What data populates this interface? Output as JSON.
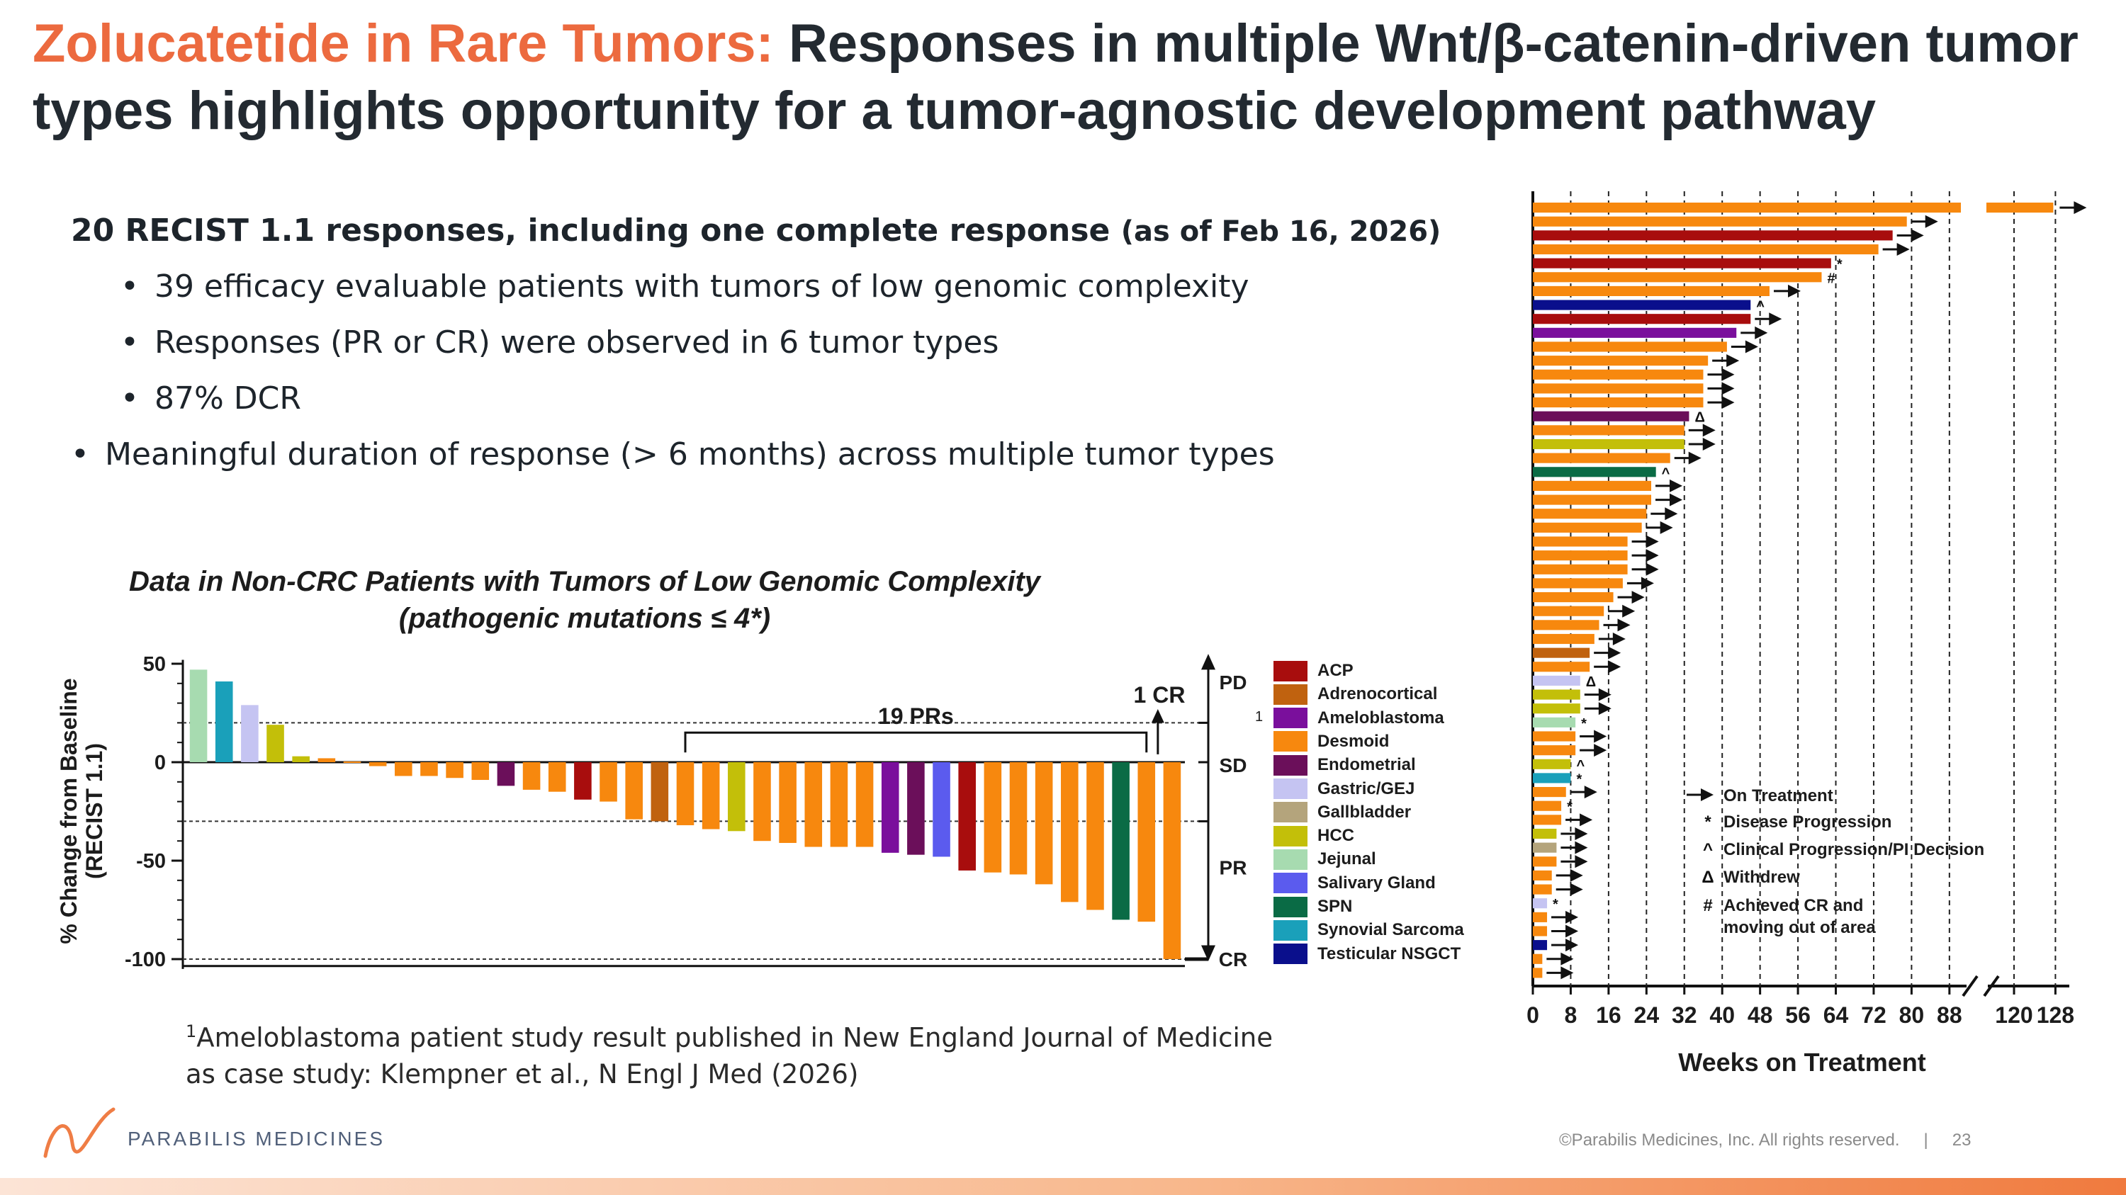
{
  "header": {
    "title_accent": "Zolucatetide in Rare Tumors:",
    "title_rest": "Responses in multiple Wnt/β-catenin-driven tumor types highlights opportunity for a tumor-agnostic development pathway"
  },
  "bullets": {
    "main": "20 RECIST 1.1 responses, including one complete response",
    "main_date": "(as of Feb 16, 2026)",
    "sub": [
      "39 efficacy evaluable patients with tumors of low genomic complexity",
      "Responses (PR or CR) were observed in 6 tumor types",
      "87% DCR"
    ],
    "last": "Meaningful duration of response (> 6 months) across  multiple tumor types"
  },
  "waterfall_title": {
    "line1": "Data in Non-CRC Patients with Tumors of Low Genomic Complexity",
    "line2": "(pathogenic mutations ≤ 4*)"
  },
  "colors": {
    "ACP": "#a80d0d",
    "Adrenocortical": "#c0620f",
    "Ameloblastoma": "#7a0f9c",
    "Desmoid": "#f7880e",
    "Endometrial": "#6b0f5a",
    "Gastric/GEJ": "#c5c4f2",
    "Gallbladder": "#b4a47c",
    "HCC": "#c3bf09",
    "Jejunal": "#a7dbb0",
    "Salivary Gland": "#5b5bee",
    "SPN": "#0a6b45",
    "Synovial Sarcoma": "#1aa0ba",
    "Testicular NSGCT": "#0a0f8c"
  },
  "chart_data": [
    {
      "type": "bar",
      "ylabel": "% Change from Baseline (RECIST 1.1)",
      "ylim": [
        -105,
        55
      ],
      "yticks": [
        50,
        0,
        -50,
        -100
      ],
      "reference_lines": [
        20,
        -30,
        -100
      ],
      "zones": [
        "PD",
        "SD",
        "PR",
        "CR"
      ],
      "annotations": {
        "prs": "19 PRs",
        "cr": "1 CR",
        "superscript": "1"
      },
      "bars": [
        {
          "value": 47,
          "type": "Jejunal"
        },
        {
          "value": 41,
          "type": "Synovial Sarcoma"
        },
        {
          "value": 29,
          "type": "Gastric/GEJ"
        },
        {
          "value": 19,
          "type": "HCC"
        },
        {
          "value": 3,
          "type": "HCC"
        },
        {
          "value": 2,
          "type": "Desmoid"
        },
        {
          "value": 0,
          "type": "Desmoid"
        },
        {
          "value": -2,
          "type": "Desmoid"
        },
        {
          "value": -7,
          "type": "Desmoid"
        },
        {
          "value": -7,
          "type": "Desmoid"
        },
        {
          "value": -8,
          "type": "Desmoid"
        },
        {
          "value": -9,
          "type": "Desmoid"
        },
        {
          "value": -12,
          "type": "Endometrial"
        },
        {
          "value": -14,
          "type": "Desmoid"
        },
        {
          "value": -15,
          "type": "Desmoid"
        },
        {
          "value": -19,
          "type": "ACP"
        },
        {
          "value": -20,
          "type": "Desmoid"
        },
        {
          "value": -29,
          "type": "Desmoid"
        },
        {
          "value": -30,
          "type": "Adrenocortical"
        },
        {
          "value": -32,
          "type": "Desmoid"
        },
        {
          "value": -34,
          "type": "Desmoid"
        },
        {
          "value": -35,
          "type": "HCC"
        },
        {
          "value": -40,
          "type": "Desmoid"
        },
        {
          "value": -41,
          "type": "Desmoid"
        },
        {
          "value": -43,
          "type": "Desmoid"
        },
        {
          "value": -43,
          "type": "Desmoid"
        },
        {
          "value": -43,
          "type": "Desmoid"
        },
        {
          "value": -46,
          "type": "Ameloblastoma"
        },
        {
          "value": -47,
          "type": "Endometrial"
        },
        {
          "value": -48,
          "type": "Salivary Gland"
        },
        {
          "value": -55,
          "type": "ACP"
        },
        {
          "value": -56,
          "type": "Desmoid"
        },
        {
          "value": -57,
          "type": "Desmoid"
        },
        {
          "value": -62,
          "type": "Desmoid"
        },
        {
          "value": -71,
          "type": "Desmoid"
        },
        {
          "value": -75,
          "type": "Desmoid"
        },
        {
          "value": -80,
          "type": "SPN"
        },
        {
          "value": -81,
          "type": "Desmoid"
        },
        {
          "value": -100,
          "type": "Desmoid"
        }
      ],
      "legend": [
        "ACP",
        "Adrenocortical",
        "Ameloblastoma",
        "Desmoid",
        "Endometrial",
        "Gastric/GEJ",
        "Gallbladder",
        "HCC",
        "Jejunal",
        "Salivary Gland",
        "SPN",
        "Synovial Sarcoma",
        "Testicular NSGCT"
      ],
      "legend_marker": {
        "Ameloblastoma": "1"
      }
    },
    {
      "type": "bar",
      "orientation": "horizontal",
      "xlabel": "Weeks on Treatment",
      "xticks": [
        "0",
        "8",
        "16",
        "24",
        "32",
        "40",
        "48",
        "56",
        "64",
        "72",
        "80",
        "88",
        "120",
        "128"
      ],
      "axis_break": [
        88,
        120
      ],
      "legend": [
        {
          "symbol": "arrow",
          "label": "On Treatment"
        },
        {
          "symbol": "*",
          "label": "Disease  Progression"
        },
        {
          "symbol": "^",
          "label": "Clinical  Progression/PI Decision"
        },
        {
          "symbol": "Δ",
          "label": "Withdrew"
        },
        {
          "symbol": "#",
          "label": "Achieved CR and moving out of area"
        }
      ],
      "bars": [
        {
          "weeks": 128,
          "type": "Desmoid",
          "marker": "arrow"
        },
        {
          "weeks": 79,
          "type": "Desmoid",
          "marker": "arrow"
        },
        {
          "weeks": 76,
          "type": "ACP",
          "marker": "arrow"
        },
        {
          "weeks": 73,
          "type": "Desmoid",
          "marker": "arrow"
        },
        {
          "weeks": 63,
          "type": "ACP",
          "marker": "*"
        },
        {
          "weeks": 61,
          "type": "Desmoid",
          "marker": "#"
        },
        {
          "weeks": 50,
          "type": "Desmoid",
          "marker": "arrow"
        },
        {
          "weeks": 46,
          "type": "Testicular NSGCT",
          "marker": "^"
        },
        {
          "weeks": 46,
          "type": "ACP",
          "marker": "arrow"
        },
        {
          "weeks": 43,
          "type": "Ameloblastoma",
          "marker": "arrow"
        },
        {
          "weeks": 41,
          "type": "Desmoid",
          "marker": "arrow"
        },
        {
          "weeks": 37,
          "type": "Desmoid",
          "marker": "arrow"
        },
        {
          "weeks": 36,
          "type": "Desmoid",
          "marker": "arrow"
        },
        {
          "weeks": 36,
          "type": "Desmoid",
          "marker": "arrow"
        },
        {
          "weeks": 36,
          "type": "Desmoid",
          "marker": "arrow"
        },
        {
          "weeks": 33,
          "type": "Endometrial",
          "marker": "Δ"
        },
        {
          "weeks": 32,
          "type": "Desmoid",
          "marker": "arrow"
        },
        {
          "weeks": 32,
          "type": "HCC",
          "marker": "arrow"
        },
        {
          "weeks": 29,
          "type": "Desmoid",
          "marker": "arrow"
        },
        {
          "weeks": 26,
          "type": "SPN",
          "marker": "^"
        },
        {
          "weeks": 25,
          "type": "Desmoid",
          "marker": "arrow"
        },
        {
          "weeks": 25,
          "type": "Desmoid",
          "marker": "arrow"
        },
        {
          "weeks": 24,
          "type": "Desmoid",
          "marker": "arrow"
        },
        {
          "weeks": 23,
          "type": "Desmoid",
          "marker": "arrow"
        },
        {
          "weeks": 20,
          "type": "Desmoid",
          "marker": "arrow"
        },
        {
          "weeks": 20,
          "type": "Desmoid",
          "marker": "arrow"
        },
        {
          "weeks": 20,
          "type": "Desmoid",
          "marker": "arrow"
        },
        {
          "weeks": 19,
          "type": "Desmoid",
          "marker": "arrow"
        },
        {
          "weeks": 17,
          "type": "Desmoid",
          "marker": "arrow"
        },
        {
          "weeks": 15,
          "type": "Desmoid",
          "marker": "arrow"
        },
        {
          "weeks": 14,
          "type": "Desmoid",
          "marker": "arrow"
        },
        {
          "weeks": 13,
          "type": "Desmoid",
          "marker": "arrow"
        },
        {
          "weeks": 12,
          "type": "Adrenocortical",
          "marker": "arrow"
        },
        {
          "weeks": 12,
          "type": "Desmoid",
          "marker": "arrow"
        },
        {
          "weeks": 10,
          "type": "Gastric/GEJ",
          "marker": "Δ"
        },
        {
          "weeks": 10,
          "type": "HCC",
          "marker": "arrow"
        },
        {
          "weeks": 10,
          "type": "HCC",
          "marker": "arrow"
        },
        {
          "weeks": 9,
          "type": "Jejunal",
          "marker": "*"
        },
        {
          "weeks": 9,
          "type": "Desmoid",
          "marker": "arrow"
        },
        {
          "weeks": 9,
          "type": "Desmoid",
          "marker": "arrow"
        },
        {
          "weeks": 8,
          "type": "HCC",
          "marker": "^"
        },
        {
          "weeks": 8,
          "type": "Synovial Sarcoma",
          "marker": "*"
        },
        {
          "weeks": 7,
          "type": "Desmoid",
          "marker": "arrow"
        },
        {
          "weeks": 6,
          "type": "Desmoid",
          "marker": "*"
        },
        {
          "weeks": 6,
          "type": "Desmoid",
          "marker": "arrow"
        },
        {
          "weeks": 5,
          "type": "HCC",
          "marker": "arrow"
        },
        {
          "weeks": 5,
          "type": "Gallbladder",
          "marker": "arrow"
        },
        {
          "weeks": 5,
          "type": "Desmoid",
          "marker": "arrow"
        },
        {
          "weeks": 4,
          "type": "Desmoid",
          "marker": "arrow"
        },
        {
          "weeks": 4,
          "type": "Desmoid",
          "marker": "arrow"
        },
        {
          "weeks": 3,
          "type": "Gastric/GEJ",
          "marker": "*"
        },
        {
          "weeks": 3,
          "type": "Desmoid",
          "marker": "arrow"
        },
        {
          "weeks": 3,
          "type": "Desmoid",
          "marker": "arrow"
        },
        {
          "weeks": 3,
          "type": "Testicular NSGCT",
          "marker": "arrow"
        },
        {
          "weeks": 2,
          "type": "Desmoid",
          "marker": "arrow"
        },
        {
          "weeks": 2,
          "type": "Desmoid",
          "marker": "arrow"
        }
      ]
    }
  ],
  "footnote": {
    "sup": "1",
    "line1": "Ameloblastoma patient study result published in New England Journal of Medicine",
    "line2": "as case study: Klempner et al., N Engl J Med (2026)"
  },
  "footer": {
    "logo_text": "PARABILIS MEDICINES",
    "copyright": "©Parabilis Medicines, Inc.  All rights reserved.",
    "separator": "|",
    "page_number": "23"
  }
}
